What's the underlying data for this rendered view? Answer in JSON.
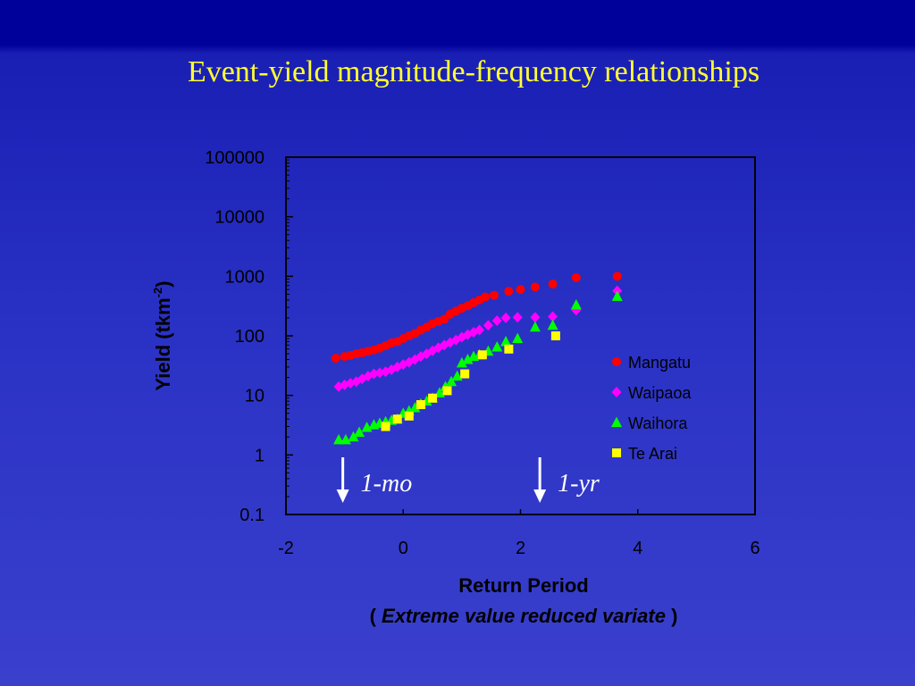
{
  "slide": {
    "title": "Event-yield magnitude-frequency relationships"
  },
  "chart_data": {
    "type": "scatter",
    "title": "",
    "xlabel": "Return Period",
    "xlabel_note_open": "(",
    "xlabel_note": "Extreme value reduced variate",
    "xlabel_note_close": ")",
    "ylabel": "Yield (tkm-2)",
    "ylabel_main": "Yield (tkm",
    "ylabel_sup": "-2",
    "ylabel_close": ")",
    "xlim": [
      -2,
      6
    ],
    "ylim": [
      0.1,
      100000
    ],
    "yscale": "log",
    "xticks": [
      "-2",
      "0",
      "2",
      "4",
      "6"
    ],
    "yticks": [
      "0.1",
      "1",
      "10",
      "100",
      "1000",
      "10000",
      "100000"
    ],
    "legend_position": "right-inside",
    "annotations": [
      {
        "text": "1-mo",
        "x": -1.03
      },
      {
        "text": "1-yr",
        "x": 2.33
      }
    ],
    "series": [
      {
        "name": "Mangatu",
        "marker": "circle",
        "color": "#ff0000",
        "points": [
          [
            -1.15,
            42
          ],
          [
            -1.0,
            45
          ],
          [
            -0.9,
            47
          ],
          [
            -0.8,
            50
          ],
          [
            -0.7,
            52
          ],
          [
            -0.6,
            55
          ],
          [
            -0.5,
            58
          ],
          [
            -0.4,
            62
          ],
          [
            -0.3,
            68
          ],
          [
            -0.2,
            76
          ],
          [
            -0.1,
            80
          ],
          [
            0.0,
            90
          ],
          [
            0.1,
            100
          ],
          [
            0.2,
            110
          ],
          [
            0.3,
            125
          ],
          [
            0.4,
            140
          ],
          [
            0.5,
            160
          ],
          [
            0.6,
            175
          ],
          [
            0.7,
            190
          ],
          [
            0.8,
            230
          ],
          [
            0.9,
            260
          ],
          [
            1.0,
            290
          ],
          [
            1.1,
            320
          ],
          [
            1.2,
            360
          ],
          [
            1.3,
            400
          ],
          [
            1.4,
            450
          ],
          [
            1.55,
            480
          ],
          [
            1.8,
            560
          ],
          [
            2.0,
            600
          ],
          [
            2.25,
            660
          ],
          [
            2.55,
            740
          ],
          [
            2.95,
            950
          ],
          [
            3.65,
            1000
          ]
        ]
      },
      {
        "name": "Waipaoa",
        "marker": "diamond",
        "color": "#ff00ff",
        "points": [
          [
            -1.1,
            14
          ],
          [
            -1.0,
            15
          ],
          [
            -0.9,
            16
          ],
          [
            -0.8,
            17
          ],
          [
            -0.7,
            19
          ],
          [
            -0.6,
            21
          ],
          [
            -0.5,
            23
          ],
          [
            -0.4,
            24
          ],
          [
            -0.3,
            25
          ],
          [
            -0.2,
            27
          ],
          [
            -0.1,
            30
          ],
          [
            0.0,
            33
          ],
          [
            0.1,
            36
          ],
          [
            0.2,
            40
          ],
          [
            0.3,
            45
          ],
          [
            0.4,
            50
          ],
          [
            0.5,
            56
          ],
          [
            0.6,
            63
          ],
          [
            0.7,
            70
          ],
          [
            0.8,
            77
          ],
          [
            0.9,
            85
          ],
          [
            1.0,
            95
          ],
          [
            1.1,
            105
          ],
          [
            1.2,
            115
          ],
          [
            1.3,
            125
          ],
          [
            1.45,
            150
          ],
          [
            1.6,
            180
          ],
          [
            1.75,
            200
          ],
          [
            1.95,
            205
          ],
          [
            2.25,
            205
          ],
          [
            2.55,
            210
          ],
          [
            2.95,
            270
          ],
          [
            3.65,
            570
          ]
        ]
      },
      {
        "name": "Waihora",
        "marker": "triangle",
        "color": "#00ff00",
        "points": [
          [
            -1.1,
            1.8
          ],
          [
            -0.98,
            1.8
          ],
          [
            -0.85,
            2.0
          ],
          [
            -0.75,
            2.4
          ],
          [
            -0.62,
            2.9
          ],
          [
            -0.5,
            3.2
          ],
          [
            -0.4,
            3.4
          ],
          [
            -0.3,
            3.6
          ],
          [
            -0.2,
            3.8
          ],
          [
            -0.1,
            4.0
          ],
          [
            0.0,
            5.0
          ],
          [
            0.1,
            5.5
          ],
          [
            0.2,
            6.2
          ],
          [
            0.3,
            7.2
          ],
          [
            0.4,
            8.0
          ],
          [
            0.5,
            9.0
          ],
          [
            0.62,
            11
          ],
          [
            0.72,
            14
          ],
          [
            0.82,
            17
          ],
          [
            0.92,
            21
          ],
          [
            1.0,
            35
          ],
          [
            1.1,
            40
          ],
          [
            1.2,
            45
          ],
          [
            1.3,
            48
          ],
          [
            1.45,
            55
          ],
          [
            1.6,
            65
          ],
          [
            1.75,
            80
          ],
          [
            1.95,
            90
          ],
          [
            2.25,
            140
          ],
          [
            2.55,
            150
          ],
          [
            2.95,
            330
          ],
          [
            3.65,
            460
          ]
        ]
      },
      {
        "name": "Te Arai",
        "marker": "square",
        "color": "#ffff00",
        "points": [
          [
            -0.3,
            3.0
          ],
          [
            -0.1,
            4.0
          ],
          [
            0.1,
            4.5
          ],
          [
            0.3,
            7.0
          ],
          [
            0.5,
            9.0
          ],
          [
            0.75,
            12
          ],
          [
            1.05,
            23
          ],
          [
            1.35,
            48
          ],
          [
            1.8,
            60
          ],
          [
            2.6,
            100
          ]
        ]
      }
    ]
  }
}
